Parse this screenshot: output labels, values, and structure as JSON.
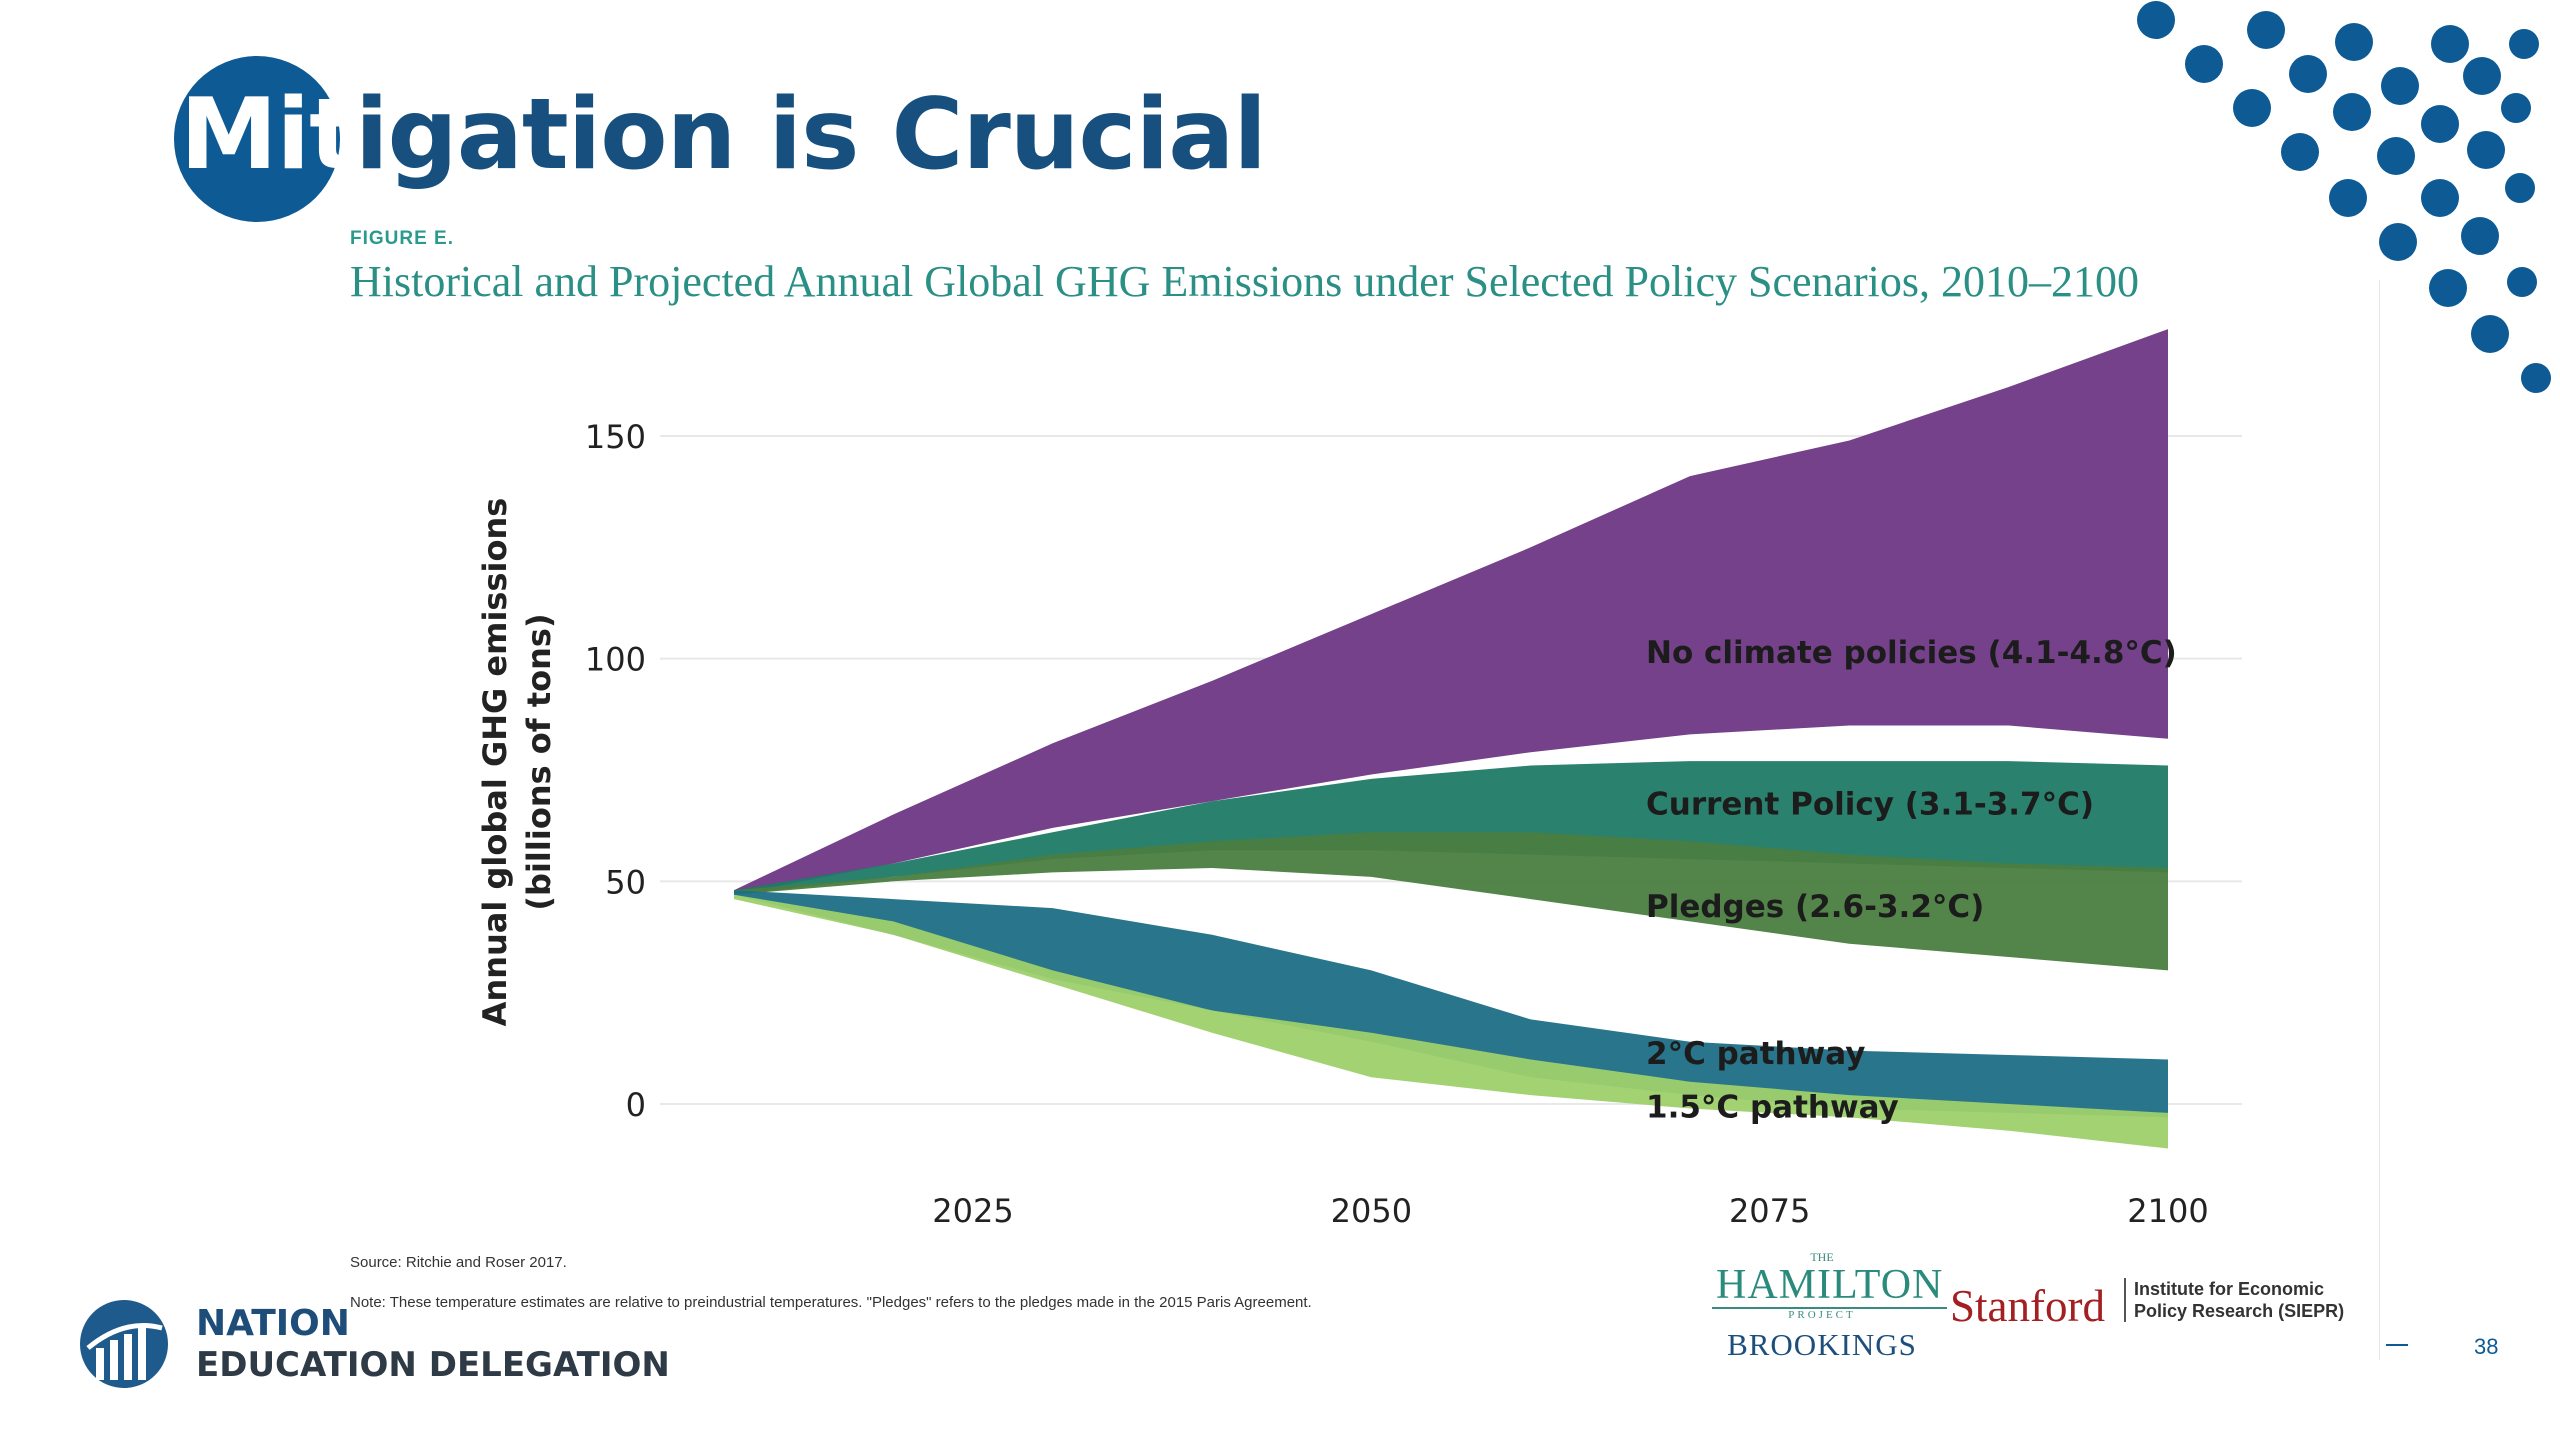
{
  "slide": {
    "title_highlight": "Mit",
    "title_rest": "igation is Crucial",
    "page_number": "38"
  },
  "figure": {
    "label": "FIGURE E.",
    "title": "Historical and Projected Annual Global GHG Emissions under Selected Policy Scenarios, 2010–2100",
    "source": "Source: Ritchie and Roser 2017.",
    "note": "Note: These temperature estimates are relative to preindustrial temperatures. \"Pledges\" refers to the pledges made in the 2015 Paris Agreement."
  },
  "footer": {
    "org_line1": "NATIONAL",
    "org_line2": "EDUCATION DELEGATION",
    "hamilton_the": "THE",
    "hamilton_name": "HAMILTON",
    "hamilton_project": "PROJECT",
    "brookings": "BROOKINGS",
    "stanford": "Stanford",
    "siepr_line1": "Institute for Economic",
    "siepr_line2": "Policy Research (SIEPR)"
  },
  "colors": {
    "accent_blue": "#0e5a94",
    "no_policy": "#74418a",
    "current_policy": "#1f7a66",
    "pledges": "#4a7d40",
    "two_c": "#1d6f86",
    "one_five_c": "#9ed06b",
    "figure_teal": "#2a8f84"
  },
  "chart_data": {
    "type": "area",
    "title": "Historical and Projected Annual Global GHG Emissions under Selected Policy Scenarios, 2010–2100",
    "xlabel": "",
    "ylabel_line1": "Annual global GHG emissions",
    "ylabel_line2": "(billions of tons)",
    "xlim": [
      2010,
      2100
    ],
    "ylim": [
      0,
      150
    ],
    "x_ticks": [
      2025,
      2050,
      2075,
      2100
    ],
    "y_ticks": [
      0,
      50,
      100,
      150
    ],
    "grid": true,
    "x": [
      2010,
      2020,
      2030,
      2040,
      2050,
      2060,
      2070,
      2080,
      2090,
      2100
    ],
    "series": [
      {
        "name": "No climate policies (4.1-4.8°C)",
        "color": "#74418a",
        "lower": [
          47,
          54,
          62,
          68,
          74,
          79,
          83,
          85,
          85,
          82
        ],
        "upper": [
          48,
          65,
          81,
          95,
          110,
          125,
          141,
          149,
          161,
          174
        ]
      },
      {
        "name": "Current Policy (3.1-3.7°C)",
        "color": "#1f7a66",
        "lower": [
          47,
          51,
          55,
          57,
          57,
          56,
          55,
          54,
          53,
          52
        ],
        "upper": [
          48,
          54,
          61,
          68,
          73,
          76,
          77,
          77,
          77,
          76
        ]
      },
      {
        "name": "Pledges (2.6-3.2°C)",
        "color": "#4a7d40",
        "lower": [
          47,
          50,
          52,
          53,
          51,
          46,
          41,
          36,
          33,
          30
        ],
        "upper": [
          48,
          51,
          56,
          59,
          61,
          61,
          59,
          56,
          54,
          53
        ]
      },
      {
        "name": "2°C pathway",
        "color": "#1d6f86",
        "lower": [
          47,
          38,
          28,
          21,
          14,
          6,
          2,
          -1,
          -2,
          -3
        ],
        "upper": [
          48,
          46,
          44,
          38,
          30,
          19,
          14,
          12,
          11,
          10
        ]
      },
      {
        "name": "1.5°C pathway",
        "color": "#9ed06b",
        "lower": [
          46,
          38,
          27,
          16,
          6,
          2,
          -1,
          -3,
          -6,
          -10
        ],
        "upper": [
          47,
          41,
          30,
          21,
          16,
          10,
          5,
          2,
          0,
          -2
        ]
      }
    ],
    "legend": "inline labels at right"
  }
}
